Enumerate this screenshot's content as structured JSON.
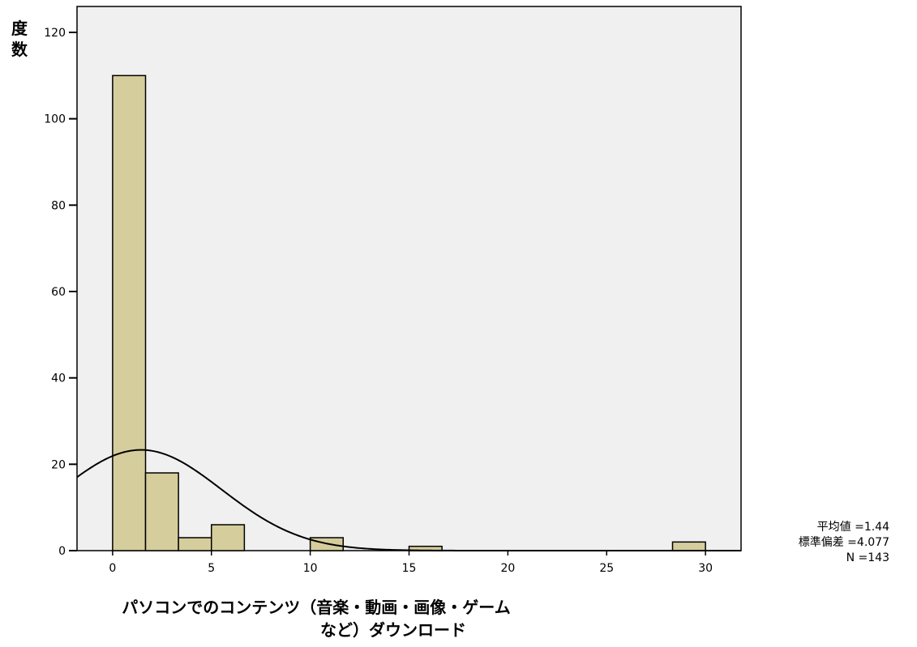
{
  "chart_data": {
    "type": "bar",
    "subtype": "histogram",
    "title": "",
    "ylabel": "度数",
    "xlabel_lines": [
      "パソコンでのコンテンツ（音楽・動画・画像・ゲーム",
      "など）ダウンロード"
    ],
    "x_ticks": [
      0,
      5,
      10,
      15,
      20,
      25,
      30
    ],
    "y_ticks": [
      0,
      20,
      40,
      60,
      80,
      100,
      120
    ],
    "xlim": [
      -1.8,
      31.8
    ],
    "ylim": [
      0,
      126
    ],
    "bin_width": 1.667,
    "bins": [
      {
        "x0": 0.0,
        "x1": 1.667,
        "count": 110
      },
      {
        "x0": 1.667,
        "x1": 3.333,
        "count": 18
      },
      {
        "x0": 3.333,
        "x1": 5.0,
        "count": 3
      },
      {
        "x0": 5.0,
        "x1": 6.667,
        "count": 6
      },
      {
        "x0": 10.0,
        "x1": 11.667,
        "count": 3
      },
      {
        "x0": 15.0,
        "x1": 16.667,
        "count": 1
      },
      {
        "x0": 28.333,
        "x1": 30.0,
        "count": 2
      }
    ],
    "normal_curve": {
      "mean": 1.44,
      "sd": 4.077,
      "n": 143
    },
    "stats": {
      "mean_label": "平均値 =1.44",
      "sd_label": "標準偏差 =4.077",
      "n_label": "N =143"
    },
    "colors": {
      "bar_fill": "#d5cd9c",
      "bar_stroke": "#000000",
      "plot_bg": "#f0f0f0"
    },
    "grid": false,
    "legend": "none"
  }
}
